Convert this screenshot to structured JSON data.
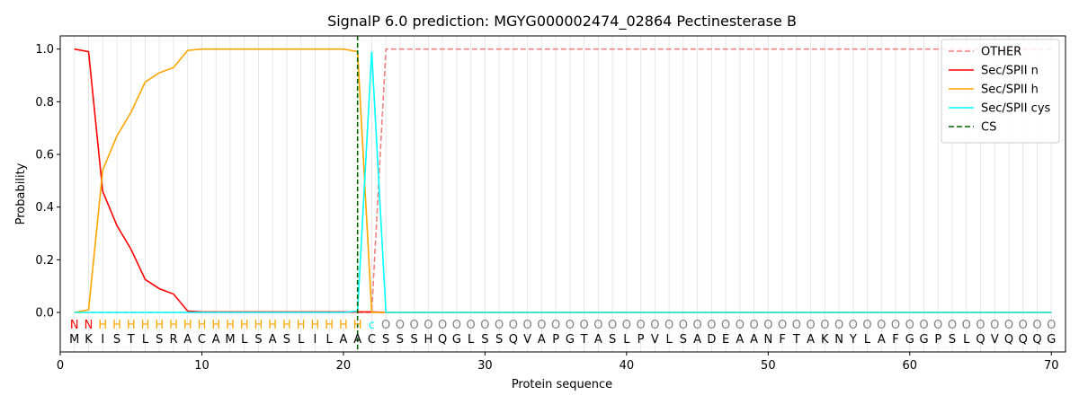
{
  "chart_data": {
    "type": "line",
    "title": "SignalP 6.0 prediction: MGYG000002474_02864 Pectinesterase B",
    "xlabel": "Protein sequence",
    "ylabel": "Probability",
    "xlim": [
      0,
      71
    ],
    "ylim": [
      -0.15,
      1.05
    ],
    "x_ticks": [
      "0",
      "10",
      "20",
      "30",
      "40",
      "50",
      "60",
      "70"
    ],
    "y_ticks": [
      "0.0",
      "0.2",
      "0.4",
      "0.6",
      "0.8",
      "1.0"
    ],
    "grid": "vertical lines at each residue",
    "legend_position": "top-right",
    "sequence": [
      "M",
      "K",
      "I",
      "S",
      "T",
      "L",
      "S",
      "R",
      "A",
      "C",
      "A",
      "M",
      "L",
      "S",
      "A",
      "S",
      "L",
      "I",
      "L",
      "A",
      "A",
      "C",
      "S",
      "S",
      "S",
      "H",
      "Q",
      "G",
      "L",
      "S",
      "S",
      "Q",
      "V",
      "A",
      "P",
      "G",
      "T",
      "A",
      "S",
      "L",
      "P",
      "V",
      "L",
      "S",
      "A",
      "D",
      "E",
      "A",
      "A",
      "N",
      "F",
      "T",
      "A",
      "K",
      "N",
      "Y",
      "L",
      "A",
      "F",
      "G",
      "G",
      "P",
      "S",
      "L",
      "Q",
      "V",
      "Q",
      "Q",
      "Q",
      "G"
    ],
    "labels": [
      "N",
      "N",
      "H",
      "H",
      "H",
      "H",
      "H",
      "H",
      "H",
      "H",
      "H",
      "H",
      "H",
      "H",
      "H",
      "H",
      "H",
      "H",
      "H",
      "H",
      "H",
      "c",
      "O",
      "O",
      "O",
      "O",
      "O",
      "O",
      "O",
      "O",
      "O",
      "O",
      "O",
      "O",
      "O",
      "O",
      "O",
      "O",
      "O",
      "O",
      "O",
      "O",
      "O",
      "O",
      "O",
      "O",
      "O",
      "O",
      "O",
      "O",
      "O",
      "O",
      "O",
      "O",
      "O",
      "O",
      "O",
      "O",
      "O",
      "O",
      "O",
      "O",
      "O",
      "O",
      "O",
      "O",
      "O",
      "O",
      "O",
      "O"
    ],
    "label_colors": {
      "N": "#ff0000",
      "H": "#ffa500",
      "c": "#00ffff",
      "O": "#808080"
    },
    "cleavage_site": 21,
    "series": [
      {
        "name": "OTHER",
        "color": "#f08080",
        "dash": true,
        "values": [
          0,
          0,
          0,
          0,
          0,
          0,
          0,
          0,
          0,
          0,
          0,
          0,
          0,
          0,
          0,
          0,
          0,
          0,
          0,
          0,
          0,
          0,
          1.0,
          1.0,
          1.0,
          1.0,
          1.0,
          1.0,
          1.0,
          1.0,
          1.0,
          1.0,
          1.0,
          1.0,
          1.0,
          1.0,
          1.0,
          1.0,
          1.0,
          1.0,
          1.0,
          1.0,
          1.0,
          1.0,
          1.0,
          1.0,
          1.0,
          1.0,
          1.0,
          1.0,
          1.0,
          1.0,
          1.0,
          1.0,
          1.0,
          1.0,
          1.0,
          1.0,
          1.0,
          1.0,
          1.0,
          1.0,
          1.0,
          1.0,
          1.0,
          1.0,
          1.0,
          1.0,
          1.0,
          1.0
        ]
      },
      {
        "name": "Sec/SPII n",
        "color": "#ff0000",
        "dash": false,
        "values": [
          1.0,
          0.99,
          0.46,
          0.33,
          0.24,
          0.125,
          0.09,
          0.07,
          0.005,
          0.002,
          0.002,
          0.002,
          0.002,
          0.002,
          0.002,
          0.002,
          0.002,
          0.002,
          0.002,
          0.002,
          0.002,
          0.002,
          0,
          0,
          0,
          0,
          0,
          0,
          0,
          0,
          0,
          0,
          0,
          0,
          0,
          0,
          0,
          0,
          0,
          0,
          0,
          0,
          0,
          0,
          0,
          0,
          0,
          0,
          0,
          0,
          0,
          0,
          0,
          0,
          0,
          0,
          0,
          0,
          0,
          0,
          0,
          0,
          0,
          0,
          0,
          0,
          0,
          0,
          0,
          0
        ]
      },
      {
        "name": "Sec/SPII h",
        "color": "#ffa500",
        "dash": false,
        "values": [
          0,
          0.01,
          0.54,
          0.67,
          0.76,
          0.875,
          0.91,
          0.93,
          0.995,
          1.0,
          1.0,
          1.0,
          1.0,
          1.0,
          1.0,
          1.0,
          1.0,
          1.0,
          1.0,
          1.0,
          0.99,
          0.0,
          0,
          0,
          0,
          0,
          0,
          0,
          0,
          0,
          0,
          0,
          0,
          0,
          0,
          0,
          0,
          0,
          0,
          0,
          0,
          0,
          0,
          0,
          0,
          0,
          0,
          0,
          0,
          0,
          0,
          0,
          0,
          0,
          0,
          0,
          0,
          0,
          0,
          0,
          0,
          0,
          0,
          0,
          0,
          0,
          0,
          0,
          0,
          0
        ]
      },
      {
        "name": "Sec/SPII cys",
        "color": "#00ffff",
        "dash": false,
        "values": [
          0,
          0,
          0,
          0,
          0,
          0,
          0,
          0,
          0,
          0,
          0,
          0,
          0,
          0,
          0,
          0,
          0,
          0,
          0,
          0,
          0.005,
          0.99,
          0,
          0,
          0,
          0,
          0,
          0,
          0,
          0,
          0,
          0,
          0,
          0,
          0,
          0,
          0,
          0,
          0,
          0,
          0,
          0,
          0,
          0,
          0,
          0,
          0,
          0,
          0,
          0,
          0,
          0,
          0,
          0,
          0,
          0,
          0,
          0,
          0,
          0,
          0,
          0,
          0,
          0,
          0,
          0,
          0,
          0,
          0,
          0
        ]
      }
    ],
    "legend": [
      {
        "name": "OTHER",
        "color": "#f08080",
        "dash": true
      },
      {
        "name": "Sec/SPII n",
        "color": "#ff0000",
        "dash": false
      },
      {
        "name": "Sec/SPII h",
        "color": "#ffa500",
        "dash": false
      },
      {
        "name": "Sec/SPII cys",
        "color": "#00ffff",
        "dash": false
      },
      {
        "name": "CS",
        "color": "#006400",
        "dash": true
      }
    ]
  }
}
